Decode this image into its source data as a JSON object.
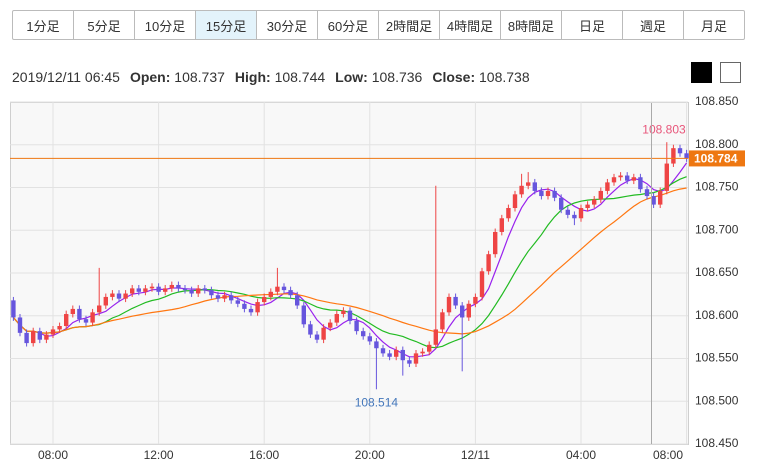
{
  "timeframes": [
    "1分足",
    "5分足",
    "10分足",
    "15分足",
    "30分足",
    "60分足",
    "2時間足",
    "4時間足",
    "8時間足",
    "日足",
    "週足",
    "月足"
  ],
  "selected_timeframe": 3,
  "ohlc_info": {
    "datetime": "2019/12/11 06:45",
    "fields": [
      {
        "label": "Open:",
        "value": 108.737
      },
      {
        "label": "High:",
        "value": 108.744
      },
      {
        "label": "Low:",
        "value": 108.736
      },
      {
        "label": "Close:",
        "value": 108.738
      }
    ]
  },
  "chart_data": {
    "type": "candlestick",
    "categories": [
      null,
      null,
      null,
      null,
      null,
      null,
      "08:00",
      null,
      null,
      null,
      null,
      null,
      null,
      null,
      null,
      null,
      null,
      null,
      null,
      null,
      null,
      null,
      "12:00",
      null,
      null,
      null,
      null,
      null,
      null,
      null,
      null,
      null,
      null,
      null,
      null,
      null,
      null,
      null,
      "16:00",
      null,
      null,
      null,
      null,
      null,
      null,
      null,
      null,
      null,
      null,
      null,
      null,
      null,
      null,
      null,
      "20:00",
      null,
      null,
      null,
      null,
      null,
      null,
      null,
      null,
      null,
      null,
      null,
      null,
      null,
      null,
      null,
      "12/11",
      null,
      null,
      null,
      null,
      null,
      null,
      null,
      null,
      null,
      null,
      null,
      null,
      null,
      null,
      null,
      "04:00",
      null,
      null,
      null,
      null,
      null,
      null,
      null,
      null,
      null,
      null,
      null,
      null,
      null,
      null,
      null,
      "08:00"
    ],
    "open": [
      108.618,
      108.598,
      108.58,
      108.568,
      108.582,
      108.572,
      108.578,
      108.584,
      108.588,
      108.602,
      108.608,
      108.596,
      108.592,
      108.604,
      108.612,
      108.622,
      108.626,
      108.62,
      108.626,
      108.632,
      108.628,
      108.632,
      108.634,
      108.628,
      108.632,
      108.636,
      108.632,
      108.63,
      108.626,
      108.632,
      108.63,
      108.624,
      108.62,
      108.624,
      108.618,
      108.614,
      108.608,
      108.604,
      108.616,
      108.622,
      108.628,
      108.634,
      108.63,
      108.624,
      108.612,
      108.59,
      108.578,
      108.572,
      108.586,
      108.592,
      108.602,
      108.606,
      108.594,
      108.582,
      108.576,
      108.57,
      108.562,
      108.556,
      108.552,
      108.56,
      108.548,
      108.544,
      108.556,
      108.558,
      108.566,
      108.584,
      108.604,
      108.622,
      108.612,
      108.598,
      108.614,
      108.622,
      108.652,
      108.672,
      108.698,
      108.714,
      108.726,
      108.742,
      108.752,
      108.756,
      108.746,
      108.74,
      108.746,
      108.738,
      108.724,
      108.718,
      108.714,
      108.726,
      108.73,
      108.736,
      108.746,
      108.756,
      108.762,
      108.764,
      108.758,
      108.762,
      108.748,
      108.74,
      108.73,
      108.746,
      108.778,
      108.796,
      108.79
    ],
    "high": [
      108.622,
      108.602,
      108.584,
      108.586,
      108.586,
      108.582,
      108.588,
      108.592,
      108.606,
      108.612,
      108.612,
      108.6,
      108.608,
      108.656,
      108.626,
      108.63,
      108.63,
      108.63,
      108.636,
      108.636,
      108.636,
      108.638,
      108.638,
      108.636,
      108.64,
      108.64,
      108.636,
      108.634,
      108.636,
      108.636,
      108.634,
      108.628,
      108.628,
      108.628,
      108.622,
      108.618,
      108.612,
      108.62,
      108.626,
      108.632,
      108.656,
      108.638,
      108.634,
      108.628,
      108.616,
      108.594,
      108.582,
      108.59,
      108.596,
      108.606,
      108.61,
      108.61,
      108.598,
      108.586,
      108.58,
      108.574,
      108.566,
      108.56,
      108.564,
      108.564,
      108.552,
      108.56,
      108.562,
      108.57,
      108.752,
      108.608,
      108.626,
      108.626,
      108.616,
      108.618,
      108.626,
      108.656,
      108.676,
      108.702,
      108.718,
      108.73,
      108.746,
      108.766,
      108.768,
      108.76,
      108.75,
      108.75,
      108.75,
      108.742,
      108.728,
      108.722,
      108.73,
      108.734,
      108.74,
      108.75,
      108.76,
      108.766,
      108.768,
      108.768,
      108.766,
      108.766,
      108.752,
      108.744,
      108.75,
      108.803,
      108.8,
      108.8,
      108.794
    ],
    "low": [
      108.594,
      108.576,
      108.564,
      108.564,
      108.568,
      108.568,
      108.574,
      108.58,
      108.584,
      108.598,
      108.592,
      108.588,
      108.588,
      108.6,
      108.608,
      108.618,
      108.616,
      108.616,
      108.622,
      108.624,
      108.624,
      108.628,
      108.624,
      108.624,
      108.628,
      108.628,
      108.626,
      108.622,
      108.622,
      108.626,
      108.62,
      108.616,
      108.616,
      108.614,
      108.61,
      108.604,
      108.6,
      108.6,
      108.612,
      108.618,
      108.624,
      108.626,
      108.62,
      108.608,
      108.586,
      108.574,
      108.568,
      108.568,
      108.582,
      108.588,
      108.598,
      108.59,
      108.578,
      108.572,
      108.566,
      108.514,
      108.552,
      108.548,
      108.548,
      108.53,
      108.54,
      108.54,
      108.552,
      108.554,
      108.562,
      108.58,
      108.6,
      108.608,
      108.535,
      108.594,
      108.61,
      108.618,
      108.648,
      108.668,
      108.694,
      108.71,
      108.722,
      108.738,
      108.748,
      108.742,
      108.736,
      108.736,
      108.734,
      108.72,
      108.714,
      108.706,
      108.71,
      108.722,
      108.726,
      108.732,
      108.742,
      108.752,
      108.758,
      108.754,
      108.754,
      108.744,
      108.736,
      108.726,
      108.726,
      108.742,
      108.774,
      108.786,
      108.78
    ],
    "close": [
      108.598,
      108.58,
      108.568,
      108.582,
      108.572,
      108.578,
      108.584,
      108.588,
      108.602,
      108.608,
      108.596,
      108.592,
      108.604,
      108.612,
      108.622,
      108.626,
      108.62,
      108.626,
      108.632,
      108.628,
      108.632,
      108.634,
      108.628,
      108.632,
      108.636,
      108.632,
      108.63,
      108.626,
      108.632,
      108.63,
      108.624,
      108.62,
      108.624,
      108.618,
      108.614,
      108.608,
      108.604,
      108.616,
      108.622,
      108.628,
      108.634,
      108.63,
      108.624,
      108.612,
      108.59,
      108.578,
      108.572,
      108.586,
      108.592,
      108.602,
      108.606,
      108.594,
      108.582,
      108.576,
      108.57,
      108.562,
      108.556,
      108.552,
      108.56,
      108.548,
      108.544,
      108.556,
      108.558,
      108.566,
      108.584,
      108.604,
      108.622,
      108.612,
      108.598,
      108.614,
      108.622,
      108.652,
      108.672,
      108.698,
      108.714,
      108.726,
      108.742,
      108.752,
      108.756,
      108.746,
      108.74,
      108.746,
      108.738,
      108.724,
      108.718,
      108.714,
      108.726,
      108.73,
      108.736,
      108.746,
      108.756,
      108.762,
      108.764,
      108.758,
      108.762,
      108.748,
      108.74,
      108.73,
      108.746,
      108.778,
      108.796,
      108.79,
      108.784
    ],
    "up_color": "#ee4444",
    "down_color": "#6655dd",
    "moving_averages": [
      {
        "period": 5,
        "color": "#9922ee"
      },
      {
        "period": 13,
        "color": "#22bb22"
      },
      {
        "period": 25,
        "color": "#ff7711"
      }
    ],
    "price_line_color": "#ee7711",
    "high_label_color": "#e8557a",
    "low_label_color": "#4477bb",
    "ylim": [
      108.45,
      108.85
    ],
    "yticks": [
      {
        "value": 108.45,
        "label": "108.450"
      },
      {
        "value": 108.5,
        "label": "108.500"
      },
      {
        "value": 108.55,
        "label": "108.550"
      },
      {
        "value": 108.6,
        "label": "108.600"
      },
      {
        "value": 108.65,
        "label": "108.650"
      },
      {
        "value": 108.7,
        "label": "108.700"
      },
      {
        "value": 108.75,
        "label": "108.750"
      },
      {
        "value": 108.8,
        "label": "108.800"
      },
      {
        "value": 108.85,
        "label": "108.850"
      }
    ],
    "grid": true
  }
}
